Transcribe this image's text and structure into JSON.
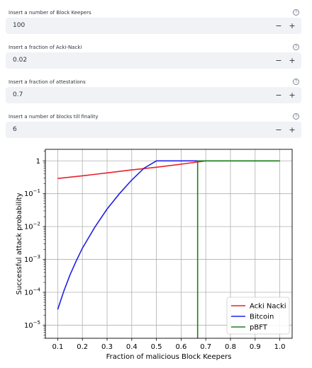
{
  "inputs": [
    {
      "label": "Insert a number of Block Keepers",
      "value": "100",
      "minus": "−",
      "plus": "+",
      "help": "?"
    },
    {
      "label": "Insert a fraction of Acki-Nacki",
      "value": "0.02",
      "minus": "−",
      "plus": "+",
      "help": "?"
    },
    {
      "label": "Insert a fraction of attestations",
      "value": "0.7",
      "minus": "−",
      "plus": "+",
      "help": "?"
    },
    {
      "label": "Insert a number of blocks till finality",
      "value": "6",
      "minus": "−",
      "plus": "+",
      "help": "?"
    }
  ],
  "chart_data": {
    "type": "line",
    "xlabel": "Fraction of malicious Block Keepers",
    "ylabel": "Successful attack probability",
    "xlim": [
      0.05,
      1.05
    ],
    "ylim_log10": [
      -5.4,
      0.35
    ],
    "yscale": "log",
    "grid": true,
    "legend_position": "lower-right",
    "x_ticks": [
      0.1,
      0.2,
      0.3,
      0.4,
      0.5,
      0.6,
      0.7,
      0.8,
      0.9,
      1.0
    ],
    "x_tick_labels": [
      "0.1",
      "0.2",
      "0.3",
      "0.4",
      "0.5",
      "0.6",
      "0.7",
      "0.8",
      "0.9",
      "1.0"
    ],
    "y_ticks": [
      {
        "exp": 0,
        "base": "1",
        "sup": ""
      },
      {
        "exp": -1,
        "base": "10",
        "sup": "−1"
      },
      {
        "exp": -2,
        "base": "10",
        "sup": "−2"
      },
      {
        "exp": -3,
        "base": "10",
        "sup": "−3"
      },
      {
        "exp": -4,
        "base": "10",
        "sup": "−4"
      },
      {
        "exp": -5,
        "base": "10",
        "sup": "−5"
      }
    ],
    "series": [
      {
        "name": "Acki Nacki",
        "color": "#e8222d",
        "x": [
          0.1,
          0.2,
          0.3,
          0.4,
          0.5,
          0.6,
          0.7,
          1.0
        ],
        "y": [
          0.29,
          0.35,
          0.43,
          0.53,
          0.64,
          0.79,
          1.0,
          1.0
        ]
      },
      {
        "name": "Bitcoin",
        "color": "#2020e8",
        "x": [
          0.1,
          0.125,
          0.15,
          0.175,
          0.2,
          0.25,
          0.3,
          0.35,
          0.4,
          0.45,
          0.5,
          0.7
        ],
        "y": [
          3e-05,
          0.00011,
          0.00034,
          0.0009,
          0.0022,
          0.0095,
          0.034,
          0.1,
          0.26,
          0.6,
          1.0,
          1.0
        ]
      },
      {
        "name": "pBFT",
        "color": "#1f7f1f",
        "x": [
          0.667,
          0.667,
          1.0
        ],
        "y": [
          3.5e-06,
          1.0,
          1.0
        ]
      }
    ]
  }
}
